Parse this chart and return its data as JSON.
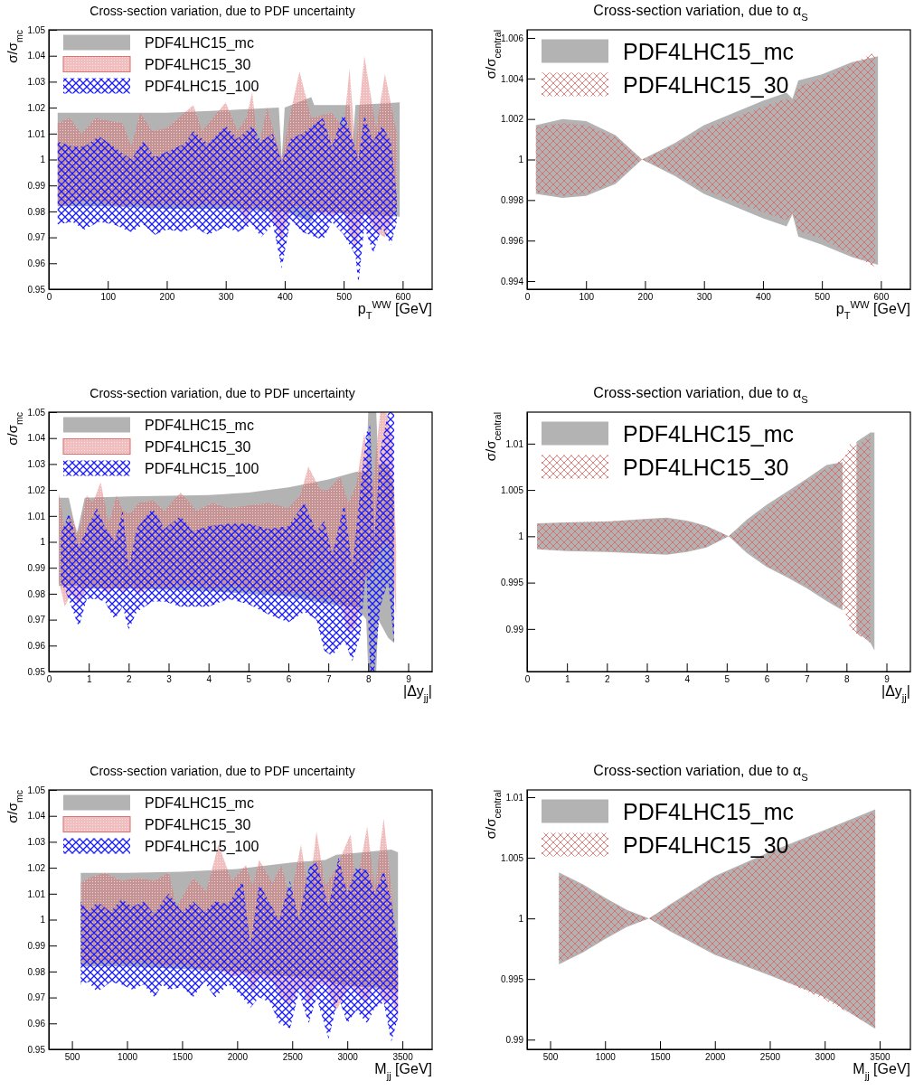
{
  "chart_data": [
    {
      "type": "area",
      "title": "Cross-section variation, due to PDF uncertainty",
      "xlabel": "p$_{T}$$^{WW}$ [GeV]",
      "ylabel": "σ/σ$_{mc}$",
      "legend": "top left",
      "xlim": [
        0,
        650
      ],
      "xticks": [
        0,
        100,
        200,
        300,
        400,
        500,
        600
      ],
      "ylim": [
        0.95,
        1.05
      ],
      "yticks": [
        0.95,
        0.96,
        0.97,
        0.98,
        0.99,
        1,
        1.01,
        1.02,
        1.03,
        1.04,
        1.05
      ],
      "series": [
        {
          "name": "PDF4LHC15_mc",
          "color": "#b3b3b3",
          "x": [
            15,
            100,
            200,
            300,
            390,
            395,
            400,
            445,
            450,
            510,
            515,
            520,
            595
          ],
          "values": [
            null,
            null,
            null,
            null,
            null,
            null,
            null,
            null,
            null,
            null,
            null,
            null,
            null
          ],
          "upper": [
            1.018,
            1.018,
            1.018,
            1.019,
            1.02,
            1.0,
            1.02,
            1.024,
            1.021,
            1.021,
            1.005,
            1.021,
            1.022
          ],
          "lower": [
            0.982,
            0.982,
            0.981,
            0.981,
            0.98,
            0.98,
            0.98,
            0.976,
            0.98,
            0.979,
            0.979,
            0.979,
            0.978
          ]
        },
        {
          "name": "PDF4LHC15_30",
          "color": "#de6f6f",
          "x": [
            15,
            35,
            55,
            80,
            100,
            125,
            140,
            155,
            175,
            200,
            245,
            260,
            300,
            320,
            335,
            345,
            355,
            370,
            395,
            410,
            425,
            445,
            480,
            500,
            510,
            520,
            535,
            555,
            570,
            590
          ],
          "values": [
            null,
            null,
            null,
            null,
            null,
            null,
            null,
            null,
            null,
            null,
            null,
            null,
            null,
            null,
            null,
            null,
            null,
            null,
            null,
            null,
            null,
            null,
            null,
            null,
            null,
            null,
            null,
            null,
            null,
            null
          ],
          "upper": [
            1.014,
            1.016,
            1.01,
            1.016,
            1.015,
            1.014,
            1.005,
            1.018,
            1.011,
            1.012,
            1.021,
            1.011,
            1.022,
            1.011,
            1.016,
            1.026,
            1.004,
            1.02,
            1.0,
            1.018,
            1.034,
            1.016,
            1.018,
            1.012,
            1.035,
            1.004,
            1.04,
            1.012,
            1.033,
            1.01
          ],
          "lower": [
            0.982,
            0.983,
            0.984,
            0.984,
            0.983,
            0.982,
            0.983,
            0.983,
            0.982,
            0.983,
            0.982,
            0.983,
            0.982,
            0.983,
            0.975,
            0.982,
            0.981,
            0.982,
            0.969,
            0.981,
            0.982,
            0.98,
            0.978,
            0.98,
            0.972,
            0.966,
            0.98,
            0.972,
            0.97,
            0.982
          ]
        },
        {
          "name": "PDF4LHC15_100",
          "color": "#1a1aff",
          "x": [
            15,
            40,
            60,
            85,
            110,
            140,
            160,
            180,
            200,
            230,
            245,
            270,
            300,
            320,
            345,
            360,
            380,
            395,
            410,
            430,
            465,
            480,
            500,
            520,
            525,
            535,
            550,
            565,
            580,
            590
          ],
          "values": [
            null,
            null,
            null,
            null,
            null,
            null,
            null,
            null,
            null,
            null,
            null,
            null,
            null,
            null,
            null,
            null,
            null,
            null,
            null,
            null,
            null,
            null,
            null,
            null,
            null,
            null,
            null,
            null,
            null,
            null
          ],
          "upper": [
            1.007,
            1.005,
            1.005,
            1.009,
            1.005,
            1.0,
            1.007,
            1.001,
            1.003,
            1.006,
            1.011,
            1.006,
            1.013,
            1.008,
            1.013,
            1.007,
            1.01,
            0.999,
            1.008,
            1.01,
            1.016,
            1.005,
            1.018,
            1.004,
            1.0,
            1.017,
            1.007,
            1.013,
            1.007,
            0.986
          ],
          "lower": [
            0.975,
            0.976,
            0.973,
            0.976,
            0.975,
            0.972,
            0.975,
            0.971,
            0.973,
            0.972,
            0.974,
            0.971,
            0.974,
            0.972,
            0.975,
            0.97,
            0.975,
            0.958,
            0.977,
            0.972,
            0.969,
            0.976,
            0.971,
            0.963,
            0.952,
            0.974,
            0.964,
            0.974,
            0.967,
            0.976
          ]
        }
      ]
    },
    {
      "type": "area",
      "title": "Cross-section variation, due to α$_{S}$",
      "xlabel": "p$_{T}$$^{WW}$ [GeV]",
      "ylabel": "σ/σ$_{central}$",
      "legend": "top left",
      "xlim": [
        0,
        650
      ],
      "xticks": [
        0,
        100,
        200,
        300,
        400,
        500,
        600
      ],
      "ylim": [
        0.9936,
        1.0064
      ],
      "yticks": [
        0.994,
        0.996,
        0.998,
        1,
        1.002,
        1.004,
        1.006
      ],
      "series": [
        {
          "name": "PDF4LHC15_mc",
          "color": "#b3b3b3",
          "x": [
            15,
            60,
            100,
            150,
            195,
            250,
            300,
            400,
            440,
            450,
            460,
            500,
            550,
            595
          ],
          "values": [
            null,
            null,
            null,
            null,
            null,
            null,
            null,
            null,
            null,
            null,
            null,
            null,
            null,
            null
          ],
          "upper": [
            1.0017,
            1.002,
            1.0019,
            1.0012,
            1.0,
            1.0008,
            1.0017,
            1.0029,
            1.0033,
            1.003,
            1.0039,
            1.0042,
            1.0048,
            1.0051
          ],
          "lower": [
            0.9983,
            0.9981,
            0.9982,
            0.9988,
            1.0,
            0.9992,
            0.9983,
            0.9971,
            0.9967,
            0.9973,
            0.9962,
            0.9958,
            0.9952,
            0.9948
          ]
        },
        {
          "name": "PDF4LHC15_30",
          "color": "#e06060",
          "x": [
            15,
            60,
            100,
            150,
            195,
            250,
            300,
            400,
            440,
            450,
            460,
            500,
            550,
            590
          ],
          "values": [
            null,
            null,
            null,
            null,
            null,
            null,
            null,
            null,
            null,
            null,
            null,
            null,
            null,
            null
          ],
          "upper": [
            1.0016,
            1.0018,
            1.0017,
            1.0011,
            1.0,
            1.0007,
            1.0015,
            1.0026,
            1.003,
            1.0028,
            1.0036,
            1.004,
            1.0047,
            1.0053
          ],
          "lower": [
            0.9984,
            0.9982,
            0.9983,
            0.9989,
            1.0,
            0.9993,
            0.9985,
            0.9974,
            0.997,
            0.9974,
            0.9965,
            0.9961,
            0.9953,
            0.9947
          ]
        }
      ]
    },
    {
      "type": "area",
      "title": "Cross-section variation, due to PDF uncertainty",
      "xlabel": "|Δy$_{jj}$|",
      "ylabel": "σ/σ$_{mc}$",
      "legend": "top left",
      "xlim": [
        0,
        9.6
      ],
      "xticks": [
        0,
        1,
        2,
        3,
        4,
        5,
        6,
        7,
        8,
        9
      ],
      "ylim": [
        0.95,
        1.05
      ],
      "yticks": [
        0.95,
        0.96,
        0.97,
        0.98,
        0.99,
        1,
        1.01,
        1.02,
        1.03,
        1.04,
        1.05
      ],
      "series": [
        {
          "name": "PDF4LHC15_mc",
          "color": "#b3b3b3",
          "x": [
            0.25,
            0.5,
            0.7,
            0.9,
            2,
            4,
            5,
            6,
            7,
            7.7,
            7.95,
            8.0,
            8.2,
            8.25,
            8.5,
            8.65
          ],
          "values": [
            null,
            null,
            null,
            null,
            null,
            null,
            null,
            null,
            null,
            null,
            null,
            null,
            null,
            null,
            null,
            null
          ],
          "upper": [
            1.017,
            1.017,
            1.003,
            1.017,
            1.0175,
            1.018,
            1.019,
            1.021,
            1.024,
            1.027,
            1.027,
            1.05,
            1.05,
            1.03,
            1.03,
            1.02
          ],
          "lower": [
            0.983,
            0.983,
            0.983,
            0.982,
            0.982,
            0.981,
            0.98,
            0.979,
            0.976,
            0.975,
            0.97,
            0.95,
            0.95,
            0.97,
            0.963,
            0.961
          ]
        },
        {
          "name": "PDF4LHC15_30",
          "color": "#de6f6f",
          "x": [
            0.25,
            0.4,
            0.55,
            0.75,
            0.95,
            1.1,
            1.3,
            1.5,
            1.7,
            1.85,
            2.05,
            2.25,
            2.6,
            2.9,
            3.3,
            3.7,
            4.1,
            4.5,
            5.0,
            5.5,
            6.0,
            6.3,
            6.5,
            6.8,
            7.0,
            7.3,
            7.5,
            7.7,
            7.9,
            8.1,
            8.3,
            8.45,
            8.6,
            8.7
          ],
          "values": [
            null,
            null,
            null,
            null,
            null,
            null,
            null,
            null,
            null,
            null,
            null,
            null,
            null,
            null,
            null,
            null,
            null,
            null,
            null,
            null,
            null,
            null,
            null,
            null,
            null,
            null,
            null,
            null,
            null,
            null,
            null,
            null,
            null,
            null
          ],
          "upper": [
            1.019,
            1.005,
            1.01,
            1.003,
            1.018,
            1.015,
            1.023,
            1.007,
            1.018,
            1.012,
            1.011,
            1.015,
            1.016,
            1.012,
            1.019,
            1.012,
            1.015,
            1.013,
            1.014,
            1.015,
            1.013,
            1.018,
            1.029,
            1.02,
            1.02,
            1.025,
            1.015,
            1.022,
            1.042,
            1.02,
            1.05,
            1.05,
            1.04,
            0.998
          ],
          "lower": [
            0.985,
            0.975,
            0.98,
            0.976,
            0.982,
            0.983,
            0.982,
            0.98,
            0.983,
            0.98,
            0.983,
            0.98,
            0.983,
            0.982,
            0.983,
            0.983,
            0.982,
            0.983,
            0.982,
            0.981,
            0.98,
            0.981,
            0.98,
            0.978,
            0.979,
            0.976,
            0.965,
            0.968,
            0.985,
            0.99,
            0.997,
            1.0,
            0.996,
            0.97
          ]
        },
        {
          "name": "PDF4LHC15_100",
          "color": "#1a1aff",
          "x": [
            0.3,
            0.5,
            0.75,
            0.95,
            1.2,
            1.4,
            1.65,
            1.85,
            2.0,
            2.2,
            2.6,
            2.9,
            3.3,
            3.6,
            4.0,
            4.5,
            5.0,
            5.5,
            6.0,
            6.4,
            6.7,
            6.9,
            7.1,
            7.4,
            7.6,
            7.8,
            7.95,
            8.05,
            8.15,
            8.3,
            8.5,
            8.65
          ],
          "values": [
            null,
            null,
            null,
            null,
            null,
            null,
            null,
            null,
            null,
            null,
            null,
            null,
            null,
            null,
            null,
            null,
            null,
            null,
            null,
            null,
            null,
            null,
            null,
            null,
            null,
            null,
            null,
            null,
            null,
            null,
            null,
            null
          ],
          "upper": [
            1.003,
            1.011,
            0.998,
            1.005,
            1.013,
            1.006,
            1.0,
            1.012,
            0.99,
            1.005,
            1.013,
            1.005,
            1.01,
            1.004,
            1.006,
            1.007,
            1.007,
            1.005,
            1.006,
            1.015,
            1.004,
            1.008,
            0.995,
            1.015,
            0.99,
            1.02,
            1.042,
            1.045,
            1.0,
            1.035,
            1.05,
            1.05
          ],
          "lower": [
            0.985,
            0.978,
            0.967,
            0.978,
            0.978,
            0.977,
            0.97,
            0.975,
            0.966,
            0.973,
            0.977,
            0.977,
            0.975,
            0.975,
            0.975,
            0.978,
            0.976,
            0.972,
            0.969,
            0.973,
            0.97,
            0.958,
            0.956,
            0.962,
            0.954,
            0.964,
            0.99,
            0.95,
            0.95,
            0.975,
            0.985,
            0.96
          ]
        }
      ]
    },
    {
      "type": "area",
      "title": "Cross-section variation, due to α$_{S}$",
      "xlabel": "|Δy$_{jj}$|",
      "ylabel": "σ/σ$_{central}$",
      "legend": "top left",
      "xlim": [
        0,
        9.6
      ],
      "xticks": [
        0,
        1,
        2,
        3,
        4,
        5,
        6,
        7,
        8,
        9
      ],
      "ylim": [
        0.9854,
        1.0134
      ],
      "yticks": [
        0.99,
        0.995,
        1,
        1.005,
        1.01
      ],
      "series": [
        {
          "name": "PDF4LHC15_mc",
          "color": "#b3b3b3",
          "x": [
            0.25,
            1,
            2,
            3,
            3.5,
            4,
            4.5,
            5.05,
            5.5,
            6,
            6.5,
            7,
            7.5,
            7.9,
            8.0,
            8.25,
            8.6,
            8.7
          ],
          "values": [
            null,
            null,
            null,
            null,
            null,
            null,
            null,
            null,
            null,
            null,
            null,
            null,
            null,
            null,
            null,
            null,
            null,
            null
          ],
          "upper": [
            1.0014,
            1.0015,
            1.0016,
            1.0019,
            1.002,
            1.0017,
            1.0011,
            1.0,
            1.0018,
            1.0034,
            1.0048,
            1.0062,
            1.0077,
            1.008,
            null,
            1.0102,
            1.0112,
            1.0112
          ],
          "lower": [
            0.9986,
            0.9984,
            0.9983,
            0.9981,
            0.998,
            0.9983,
            0.9988,
            1.0,
            0.9982,
            0.9967,
            0.9956,
            0.9944,
            0.993,
            0.992,
            null,
            0.9897,
            0.9885,
            0.9877
          ]
        },
        {
          "name": "PDF4LHC15_30",
          "color": "#e06060",
          "x": [
            0.25,
            1,
            2,
            3,
            3.5,
            4,
            4.5,
            5.05,
            5.5,
            6,
            6.5,
            7,
            7.5,
            7.95,
            8.1,
            8.25,
            8.6
          ],
          "values": [
            null,
            null,
            null,
            null,
            null,
            null,
            null,
            null,
            null,
            null,
            null,
            null,
            null,
            null,
            null,
            null,
            null
          ],
          "upper": [
            1.0013,
            1.0015,
            1.0016,
            1.0018,
            1.0019,
            1.0016,
            1.001,
            1.0,
            1.0015,
            1.003,
            1.0045,
            1.006,
            1.0073,
            1.0085,
            1.01,
            1.0098,
            1.011
          ],
          "lower": [
            0.9986,
            0.9985,
            0.9984,
            0.9982,
            0.9981,
            0.9984,
            0.9989,
            1.0,
            0.9985,
            0.9968,
            0.9958,
            0.9946,
            0.9933,
            0.992,
            0.99,
            0.9895,
            0.9885
          ]
        }
      ]
    },
    {
      "type": "area",
      "title": "Cross-section variation, due to PDF uncertainty",
      "xlabel": "M$_{jj}$ [GeV]",
      "ylabel": "σ/σ$_{mc}$",
      "legend": "top left",
      "xlim": [
        290,
        3770
      ],
      "xticks": [
        500,
        1000,
        1500,
        2000,
        2500,
        3000,
        3500
      ],
      "ylim": [
        0.95,
        1.05
      ],
      "yticks": [
        0.95,
        0.96,
        0.97,
        0.98,
        0.99,
        1,
        1.01,
        1.02,
        1.03,
        1.04,
        1.05
      ],
      "series": [
        {
          "name": "PDF4LHC15_mc",
          "color": "#b3b3b3",
          "x": [
            580,
            1000,
            1500,
            2000,
            2500,
            2800,
            2900,
            3400,
            3460
          ],
          "values": [
            null,
            null,
            null,
            null,
            null,
            null,
            null,
            null,
            null
          ],
          "upper": [
            1.018,
            1.018,
            1.0185,
            1.0195,
            1.022,
            1.023,
            1.025,
            1.027,
            1.026
          ],
          "lower": [
            0.982,
            0.982,
            0.981,
            0.98,
            0.978,
            0.977,
            0.975,
            0.973,
            0.972
          ]
        },
        {
          "name": "PDF4LHC15_30",
          "color": "#de6f6f",
          "x": [
            580,
            650,
            800,
            950,
            1100,
            1250,
            1380,
            1450,
            1600,
            1720,
            1830,
            1950,
            2080,
            2140,
            2200,
            2320,
            2400,
            2480,
            2580,
            2650,
            2720,
            2800,
            2900,
            3030,
            3080,
            3180,
            3250,
            3330,
            3400,
            3460
          ],
          "values": [
            null,
            null,
            null,
            null,
            null,
            null,
            null,
            null,
            null,
            null,
            null,
            null,
            null,
            null,
            null,
            null,
            null,
            null,
            null,
            null,
            null,
            null,
            null,
            null,
            null,
            null,
            null,
            null,
            null,
            null
          ],
          "upper": [
            1.014,
            1.016,
            1.018,
            1.015,
            1.016,
            1.015,
            1.018,
            1.005,
            1.016,
            1.011,
            1.029,
            1.015,
            1.021,
            1.013,
            1.023,
            1.014,
            1.021,
            1.008,
            1.029,
            1.009,
            1.034,
            1.013,
            1.02,
            1.033,
            1.012,
            1.036,
            1.012,
            1.039,
            1.012,
            0.98
          ],
          "lower": [
            0.984,
            0.983,
            0.984,
            0.983,
            0.984,
            0.983,
            0.982,
            0.983,
            0.982,
            0.98,
            0.981,
            0.978,
            0.979,
            0.972,
            0.978,
            0.976,
            0.97,
            0.967,
            0.975,
            0.967,
            0.975,
            0.975,
            0.965,
            0.975,
            0.972,
            0.968,
            0.976,
            0.968,
            0.97,
            0.962
          ]
        },
        {
          "name": "PDF4LHC15_100",
          "color": "#1a1aff",
          "x": [
            580,
            650,
            730,
            850,
            950,
            1050,
            1150,
            1250,
            1320,
            1380,
            1500,
            1600,
            1700,
            1800,
            1920,
            2050,
            2120,
            2200,
            2300,
            2380,
            2480,
            2560,
            2650,
            2720,
            2830,
            2920,
            3000,
            3080,
            3180,
            3250,
            3330,
            3400,
            3460
          ],
          "values": [
            null,
            null,
            null,
            null,
            null,
            null,
            null,
            null,
            null,
            null,
            null,
            null,
            null,
            null,
            null,
            null,
            null,
            null,
            null,
            null,
            null,
            null,
            null,
            null,
            null,
            null,
            null,
            null,
            null,
            null,
            null,
            null,
            null
          ],
          "upper": [
            1.007,
            1.003,
            1.007,
            1.003,
            1.008,
            1.005,
            1.007,
            1.002,
            1.007,
            1.01,
            1.003,
            1.007,
            1.003,
            1.007,
            1.006,
            1.015,
            0.99,
            1.014,
            1.006,
            1.0,
            1.015,
            1.0,
            1.02,
            1.022,
            1.005,
            1.024,
            1.01,
            1.02,
            1.019,
            1.01,
            1.019,
            1.007,
            0.99
          ],
          "lower": [
            0.975,
            0.976,
            0.972,
            0.976,
            0.975,
            0.973,
            0.975,
            0.97,
            0.975,
            0.973,
            0.974,
            0.97,
            0.976,
            0.97,
            0.975,
            0.97,
            0.966,
            0.97,
            0.968,
            0.96,
            0.958,
            0.972,
            0.96,
            0.97,
            0.954,
            0.97,
            0.96,
            0.965,
            0.96,
            0.966,
            0.968,
            0.953,
            0.962
          ]
        }
      ]
    },
    {
      "type": "area",
      "title": "Cross-section variation, due to α$_{S}$",
      "xlabel": "M$_{jj}$ [GeV]",
      "ylabel": "σ/σ$_{central}$",
      "legend": "top left",
      "xlim": [
        290,
        3780
      ],
      "xticks": [
        500,
        1000,
        1500,
        2000,
        2500,
        3000,
        3500
      ],
      "ylim": [
        0.9892,
        1.0106
      ],
      "yticks": [
        0.99,
        0.995,
        1,
        1.005,
        1.01
      ],
      "series": [
        {
          "name": "PDF4LHC15_mc",
          "color": "#b3b3b3",
          "x": [
            580,
            800,
            1000,
            1200,
            1400,
            1600,
            2000,
            2500,
            3000,
            3460
          ],
          "values": [
            null,
            null,
            null,
            null,
            null,
            null,
            null,
            null,
            null,
            null
          ],
          "upper": [
            1.0038,
            1.0028,
            1.0017,
            1.0007,
            1.0,
            1.0012,
            1.0035,
            1.0055,
            1.0073,
            1.009
          ],
          "lower": [
            0.9962,
            0.9972,
            0.9983,
            0.9993,
            1.0,
            0.9989,
            0.997,
            0.9953,
            0.9935,
            0.9909
          ]
        },
        {
          "name": "PDF4LHC15_30",
          "color": "#e06060",
          "x": [
            580,
            800,
            1000,
            1200,
            1400,
            1600,
            2000,
            2500,
            3000,
            3460
          ],
          "values": [
            null,
            null,
            null,
            null,
            null,
            null,
            null,
            null,
            null,
            null
          ],
          "upper": [
            1.0037,
            1.0027,
            1.0016,
            1.0006,
            1.0,
            1.0011,
            1.0034,
            1.0053,
            1.0072,
            1.0088
          ],
          "lower": [
            0.9963,
            0.9973,
            0.9984,
            0.9994,
            1.0,
            0.999,
            0.9971,
            0.9954,
            0.9933,
            0.991
          ]
        }
      ]
    }
  ]
}
